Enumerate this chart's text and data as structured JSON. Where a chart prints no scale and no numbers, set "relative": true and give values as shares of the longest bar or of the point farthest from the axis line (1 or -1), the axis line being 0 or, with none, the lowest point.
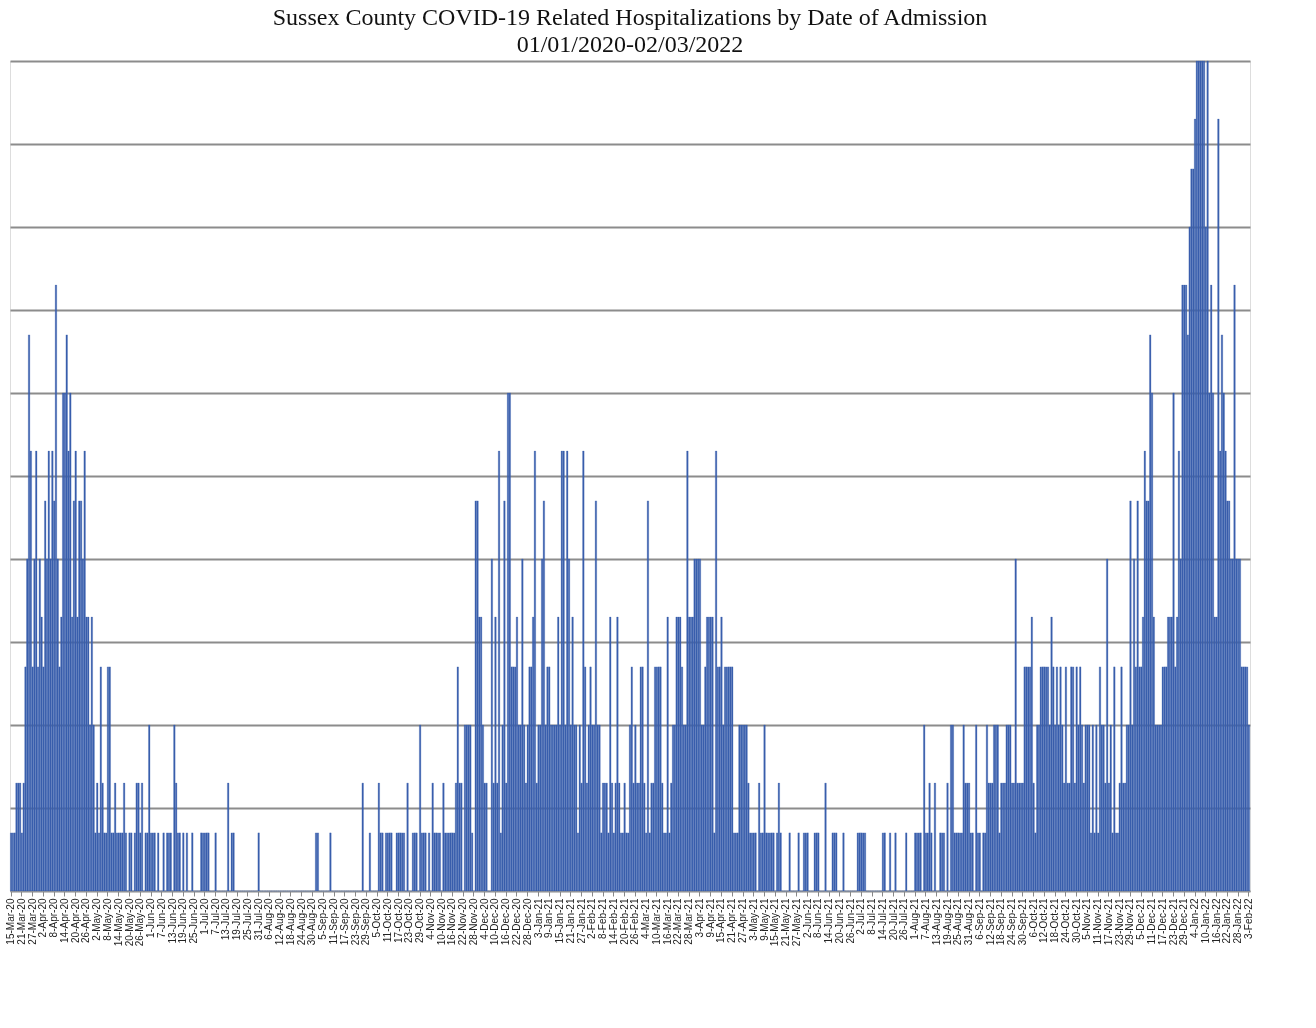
{
  "chart_data": {
    "type": "bar",
    "relative": true,
    "grid": "y",
    "color": "#3a5fad",
    "title": "Sussex County COVID-19 Related Hospitalizations by Date of Admission",
    "subtitle": "01/01/2020-02/03/2022",
    "categories": [
      "15-Mar-20",
      null,
      null,
      null,
      null,
      null,
      "21-Mar-20",
      null,
      null,
      null,
      null,
      null,
      "27-Mar-20",
      null,
      null,
      null,
      null,
      null,
      "2-Apr-20",
      null,
      null,
      null,
      null,
      null,
      "8-Apr-20",
      null,
      null,
      null,
      null,
      null,
      "14-Apr-20",
      null,
      null,
      null,
      null,
      null,
      "20-Apr-20",
      null,
      null,
      null,
      null,
      null,
      "26-Apr-20",
      null,
      null,
      null,
      null,
      null,
      "2-May-20",
      null,
      null,
      null,
      null,
      null,
      "8-May-20",
      null,
      null,
      null,
      null,
      null,
      "14-May-20",
      null,
      null,
      null,
      null,
      null,
      "20-May-20",
      null,
      null,
      null,
      null,
      null,
      "26-May-20",
      null,
      null,
      null,
      null,
      null,
      "1-Jun-20",
      null,
      null,
      null,
      null,
      null,
      "7-Jun-20",
      null,
      null,
      null,
      null,
      null,
      "13-Jun-20",
      null,
      null,
      null,
      null,
      null,
      "19-Jun-20",
      null,
      null,
      null,
      null,
      null,
      "25-Jun-20",
      null,
      null,
      null,
      null,
      null,
      "1-Jul-20",
      null,
      null,
      null,
      null,
      null,
      "7-Jul-20",
      null,
      null,
      null,
      null,
      null,
      "13-Jul-20",
      null,
      null,
      null,
      null,
      null,
      "19-Jul-20",
      null,
      null,
      null,
      null,
      null,
      "25-Jul-20",
      null,
      null,
      null,
      null,
      null,
      "31-Jul-20",
      null,
      null,
      null,
      null,
      null,
      "6-Aug-20",
      null,
      null,
      null,
      null,
      null,
      "12-Aug-20",
      null,
      null,
      null,
      null,
      null,
      "18-Aug-20",
      null,
      null,
      null,
      null,
      null,
      "24-Aug-20",
      null,
      null,
      null,
      null,
      null,
      "30-Aug-20",
      null,
      null,
      null,
      null,
      null,
      "5-Sep-20",
      null,
      null,
      null,
      null,
      null,
      "11-Sep-20",
      null,
      null,
      null,
      null,
      null,
      "17-Sep-20",
      null,
      null,
      null,
      null,
      null,
      "23-Sep-20",
      null,
      null,
      null,
      null,
      null,
      "29-Sep-20",
      null,
      null,
      null,
      null,
      null,
      "5-Oct-20",
      null,
      null,
      null,
      null,
      null,
      "11-Oct-20",
      null,
      null,
      null,
      null,
      null,
      "17-Oct-20",
      null,
      null,
      null,
      null,
      null,
      "23-Oct-20",
      null,
      null,
      null,
      null,
      null,
      "29-Oct-20",
      null,
      null,
      null,
      null,
      null,
      "4-Nov-20",
      null,
      null,
      null,
      null,
      null,
      "10-Nov-20",
      null,
      null,
      null,
      null,
      null,
      "16-Nov-20",
      null,
      null,
      null,
      null,
      null,
      "22-Nov-20",
      null,
      null,
      null,
      null,
      null,
      "28-Nov-20",
      null,
      null,
      null,
      null,
      null,
      "4-Dec-20",
      null,
      null,
      null,
      null,
      null,
      "10-Dec-20",
      null,
      null,
      null,
      null,
      null,
      "16-Dec-20",
      null,
      null,
      null,
      null,
      null,
      "22-Dec-20",
      null,
      null,
      null,
      null,
      null,
      "28-Dec-20",
      null,
      null,
      null,
      null,
      null,
      "3-Jan-21",
      null,
      null,
      null,
      null,
      null,
      "9-Jan-21",
      null,
      null,
      null,
      null,
      null,
      "15-Jan-21",
      null,
      null,
      null,
      null,
      null,
      "21-Jan-21",
      null,
      null,
      null,
      null,
      null,
      "27-Jan-21",
      null,
      null,
      null,
      null,
      null,
      "2-Feb-21",
      null,
      null,
      null,
      null,
      null,
      "8-Feb-21",
      null,
      null,
      null,
      null,
      null,
      "14-Feb-21",
      null,
      null,
      null,
      null,
      null,
      "20-Feb-21",
      null,
      null,
      null,
      null,
      null,
      "26-Feb-21",
      null,
      null,
      null,
      null,
      null,
      "4-Mar-21",
      null,
      null,
      null,
      null,
      null,
      "10-Mar-21",
      null,
      null,
      null,
      null,
      null,
      "16-Mar-21",
      null,
      null,
      null,
      null,
      null,
      "22-Mar-21",
      null,
      null,
      null,
      null,
      null,
      "28-Mar-21",
      null,
      null,
      null,
      null,
      null,
      "3-Apr-21",
      null,
      null,
      null,
      null,
      null,
      "9-Apr-21",
      null,
      null,
      null,
      null,
      null,
      "15-Apr-21",
      null,
      null,
      null,
      null,
      null,
      "21-Apr-21",
      null,
      null,
      null,
      null,
      null,
      "27-Apr-21",
      null,
      null,
      null,
      null,
      null,
      "3-May-21",
      null,
      null,
      null,
      null,
      null,
      "9-May-21",
      null,
      null,
      null,
      null,
      null,
      "15-May-21",
      null,
      null,
      null,
      null,
      null,
      "21-May-21",
      null,
      null,
      null,
      null,
      null,
      "27-May-21",
      null,
      null,
      null,
      null,
      null,
      "2-Jun-21",
      null,
      null,
      null,
      null,
      null,
      "8-Jun-21",
      null,
      null,
      null,
      null,
      null,
      "14-Jun-21",
      null,
      null,
      null,
      null,
      null,
      "20-Jun-21",
      null,
      null,
      null,
      null,
      null,
      "26-Jun-21",
      null,
      null,
      null,
      null,
      null,
      "2-Jul-21",
      null,
      null,
      null,
      null,
      null,
      "8-Jul-21",
      null,
      null,
      null,
      null,
      null,
      "14-Jul-21",
      null,
      null,
      null,
      null,
      null,
      "20-Jul-21",
      null,
      null,
      null,
      null,
      null,
      "26-Jul-21",
      null,
      null,
      null,
      null,
      null,
      "1-Aug-21",
      null,
      null,
      null,
      null,
      null,
      "7-Aug-21",
      null,
      null,
      null,
      null,
      null,
      "13-Aug-21",
      null,
      null,
      null,
      null,
      null,
      "19-Aug-21",
      null,
      null,
      null,
      null,
      null,
      "25-Aug-21",
      null,
      null,
      null,
      null,
      null,
      "31-Aug-21",
      null,
      null,
      null,
      null,
      null,
      "6-Sep-21",
      null,
      null,
      null,
      null,
      null,
      "12-Sep-21",
      null,
      null,
      null,
      null,
      null,
      "18-Sep-21",
      null,
      null,
      null,
      null,
      null,
      "24-Sep-21",
      null,
      null,
      null,
      null,
      null,
      "30-Sep-21",
      null,
      null,
      null,
      null,
      null,
      "6-Oct-21",
      null,
      null,
      null,
      null,
      null,
      "12-Oct-21",
      null,
      null,
      null,
      null,
      null,
      "18-Oct-21",
      null,
      null,
      null,
      null,
      null,
      "24-Oct-21",
      null,
      null,
      null,
      null,
      null,
      "30-Oct-21",
      null,
      null,
      null,
      null,
      null,
      "5-Nov-21",
      null,
      null,
      null,
      null,
      null,
      "11-Nov-21",
      null,
      null,
      null,
      null,
      null,
      "17-Nov-21",
      null,
      null,
      null,
      null,
      null,
      "23-Nov-21",
      null,
      null,
      null,
      null,
      null,
      "29-Nov-21",
      null,
      null,
      null,
      null,
      null,
      "5-Dec-21",
      null,
      null,
      null,
      null,
      null,
      "11-Dec-21",
      null,
      null,
      null,
      null,
      null,
      "17-Dec-21",
      null,
      null,
      null,
      null,
      null,
      "23-Dec-21",
      null,
      null,
      null,
      null,
      null,
      "29-Dec-21",
      null,
      null,
      null,
      null,
      null,
      "4-Jan-22",
      null,
      null,
      null,
      null,
      null,
      "10-Jan-22",
      null,
      null,
      null,
      null,
      null,
      "16-Jan-22",
      null,
      null,
      null,
      null,
      null,
      "22-Jan-22",
      null,
      null,
      null,
      null,
      null,
      "28-Jan-22",
      null,
      null,
      null,
      null,
      null,
      "3-Feb-22"
    ],
    "values": [
      0.07,
      0.07,
      0.07,
      0.13,
      0.13,
      0.13,
      0.07,
      0.13,
      0.27,
      0.4,
      0.67,
      0.53,
      0.27,
      0.4,
      0.53,
      0.27,
      0.4,
      0.33,
      0.27,
      0.47,
      0.4,
      0.53,
      0.4,
      0.53,
      0.47,
      0.73,
      0.4,
      0.27,
      0.33,
      0.6,
      0.6,
      0.67,
      0.53,
      0.6,
      0.33,
      0.47,
      0.53,
      0.33,
      0.47,
      0.47,
      0.4,
      0.53,
      0.33,
      0.33,
      0.2,
      0.33,
      0.2,
      0.07,
      0.13,
      0.07,
      0.27,
      0.13,
      0.07,
      0.07,
      0.27,
      0.27,
      0.07,
      0.07,
      0.13,
      0.07,
      0.07,
      0.07,
      0.07,
      0.13,
      0.07,
      0,
      0.07,
      0.07,
      0,
      0.07,
      0.13,
      0.13,
      0.07,
      0.13,
      0,
      0.07,
      0.07,
      0.2,
      0.07,
      0.07,
      0.07,
      0,
      0.07,
      0,
      0,
      0.07,
      0,
      0.07,
      0.07,
      0.07,
      0,
      0.2,
      0.13,
      0.07,
      0.07,
      0,
      0.07,
      0,
      0.07,
      0,
      0,
      0.07,
      0,
      0,
      0,
      0,
      0.07,
      0.07,
      0.07,
      0.07,
      0.07,
      0,
      0,
      0,
      0.07,
      0,
      0,
      0,
      0,
      0,
      0,
      0.13,
      0,
      0.07,
      0.07,
      0,
      0,
      0,
      0,
      0,
      0,
      0,
      0,
      0,
      0,
      0,
      0,
      0,
      0.07,
      0,
      0,
      0,
      0,
      0,
      0,
      0,
      0,
      0,
      0,
      0,
      0,
      0,
      0,
      0,
      0,
      0,
      0,
      0,
      0,
      0,
      0,
      0,
      0,
      0,
      0,
      0,
      0,
      0,
      0,
      0,
      0.07,
      0.07,
      0,
      0,
      0,
      0,
      0,
      0,
      0.07,
      0,
      0,
      0,
      0,
      0,
      0,
      0,
      0,
      0,
      0,
      0,
      0,
      0,
      0,
      0,
      0,
      0,
      0.13,
      0,
      0,
      0,
      0.07,
      0,
      0,
      0,
      0,
      0.13,
      0.07,
      0.07,
      0,
      0.07,
      0.07,
      0.07,
      0.07,
      0,
      0,
      0.07,
      0.07,
      0.07,
      0.07,
      0.07,
      0,
      0.13,
      0,
      0,
      0.07,
      0.07,
      0.07,
      0,
      0.2,
      0.07,
      0.07,
      0.07,
      0,
      0.07,
      0,
      0.13,
      0.07,
      0.07,
      0.07,
      0.07,
      0,
      0.13,
      0.07,
      0.07,
      0.07,
      0.07,
      0.07,
      0.07,
      0.13,
      0.27,
      0.13,
      0.13,
      0,
      0.2,
      0.2,
      0.2,
      0.2,
      0.07,
      0,
      0.47,
      0.47,
      0.33,
      0.33,
      0.2,
      0.13,
      0.13,
      0,
      0,
      0.4,
      0.13,
      0.33,
      0.13,
      0.53,
      0.07,
      0.2,
      0.47,
      0.13,
      0.6,
      0.6,
      0.27,
      0.27,
      0.27,
      0.33,
      0.2,
      0.2,
      0.4,
      0.2,
      0.13,
      0.2,
      0.27,
      0.27,
      0.33,
      0.53,
      0.13,
      0.2,
      0.2,
      0.4,
      0.47,
      0.2,
      0.27,
      0.27,
      0.2,
      0.2,
      0.2,
      0.2,
      0.33,
      0.2,
      0.53,
      0.53,
      0.2,
      0.53,
      0.4,
      0.2,
      0.33,
      0.2,
      0.2,
      0.07,
      0.2,
      0.13,
      0.53,
      0.27,
      0.13,
      0.2,
      0.27,
      0.2,
      0.2,
      0.47,
      0.2,
      0.2,
      0.07,
      0.13,
      0.13,
      0.13,
      0.07,
      0.33,
      0.13,
      0.07,
      0.13,
      0.33,
      0.13,
      0.07,
      0.07,
      0.13,
      0.07,
      0.07,
      0.2,
      0.27,
      0.13,
      0.2,
      0.13,
      0.13,
      0.27,
      0.27,
      0.13,
      0.07,
      0.47,
      0.07,
      0.13,
      0.13,
      0.27,
      0.27,
      0.27,
      0.27,
      0.13,
      0.07,
      0.07,
      0.33,
      0.07,
      0.13,
      0.2,
      0.2,
      0.33,
      0.33,
      0.33,
      0.27,
      0.2,
      0.2,
      0.53,
      0.33,
      0.33,
      0.33,
      0.4,
      0.4,
      0.4,
      0.4,
      0.2,
      0.2,
      0.27,
      0.33,
      0.33,
      0.33,
      0.33,
      0.07,
      0.53,
      0.27,
      0.27,
      0.33,
      0.2,
      0.27,
      0.27,
      0.27,
      0.27,
      0.27,
      0.07,
      0.07,
      0.07,
      0.2,
      0.2,
      0.2,
      0.2,
      0.2,
      0.13,
      0.07,
      0.07,
      0.07,
      0.07,
      0,
      0.13,
      0.07,
      0.07,
      0.2,
      0.07,
      0.07,
      0.07,
      0.07,
      0.07,
      0,
      0.07,
      0.13,
      0.07,
      0,
      0,
      0,
      0,
      0.07,
      0,
      0,
      0,
      0,
      0.07,
      0,
      0,
      0.07,
      0.07,
      0.07,
      0,
      0,
      0,
      0.07,
      0.07,
      0.07,
      0,
      0,
      0,
      0.13,
      0,
      0,
      0,
      0.07,
      0.07,
      0.07,
      0,
      0,
      0,
      0.07,
      0,
      0,
      0,
      0,
      0,
      0,
      0,
      0.07,
      0.07,
      0.07,
      0.07,
      0.07,
      0,
      0,
      0,
      0,
      0,
      0,
      0,
      0,
      0,
      0.07,
      0.07,
      0,
      0,
      0.07,
      0,
      0,
      0.07,
      0,
      0,
      0,
      0,
      0,
      0.07,
      0,
      0,
      0,
      0,
      0.07,
      0.07,
      0.07,
      0.07,
      0,
      0.2,
      0.07,
      0.07,
      0.13,
      0.07,
      0,
      0.13,
      0,
      0,
      0.07,
      0.07,
      0.07,
      0,
      0.13,
      0,
      0.2,
      0.2,
      0.07,
      0.07,
      0.07,
      0.07,
      0.07,
      0.2,
      0.13,
      0.13,
      0.13,
      0.07,
      0.07,
      0,
      0.2,
      0.07,
      0.07,
      0,
      0.07,
      0.07,
      0.2,
      0.13,
      0.13,
      0.13,
      0.2,
      0.2,
      0.2,
      0.07,
      0.13,
      0.13,
      0.13,
      0.2,
      0.2,
      0.2,
      0.13,
      0.13,
      0.4,
      0.13,
      0.13,
      0.13,
      0.13,
      0.27,
      0.27,
      0.27,
      0.27,
      0.33,
      0.13,
      0.07,
      0.2,
      0.2,
      0.27,
      0.27,
      0.27,
      0.27,
      0.27,
      0.2,
      0.33,
      0.27,
      0.2,
      0.27,
      0.2,
      0.27,
      0.2,
      0.13,
      0.27,
      0.13,
      0.13,
      0.27,
      0.27,
      0.13,
      0.27,
      0.2,
      0.27,
      0.2,
      0.13,
      0.2,
      0.2,
      0.2,
      0.07,
      0.2,
      0.07,
      0.2,
      0.07,
      0.27,
      0.2,
      0.2,
      0.13,
      0.4,
      0.13,
      0.2,
      0.07,
      0.27,
      0.07,
      0.07,
      0.13,
      0.27,
      0.13,
      0.13,
      0.2,
      0.2,
      0.47,
      0.2,
      0.4,
      0.27,
      0.47,
      0.27,
      0.27,
      0.33,
      0.53,
      0.47,
      0.47,
      0.67,
      0.6,
      0.33,
      0.2,
      0.2,
      0.2,
      0.2,
      0.27,
      0.27,
      0.27,
      0.33,
      0.33,
      0.33,
      0.6,
      0.27,
      0.33,
      0.53,
      0.4,
      0.73,
      0.73,
      0.73,
      0.67,
      0.8,
      0.87,
      0.87,
      0.93,
      1,
      1,
      1,
      1,
      1,
      0.8,
      1,
      0.6,
      0.73,
      0.6,
      0.33,
      0.33,
      0.93,
      0.53,
      0.67,
      0.6,
      0.53,
      0.47,
      0.47,
      0.4,
      0.4,
      0.73,
      0.4,
      0.4,
      0.4,
      0.27,
      0.27,
      0.27,
      0.27,
      0.2
    ]
  }
}
